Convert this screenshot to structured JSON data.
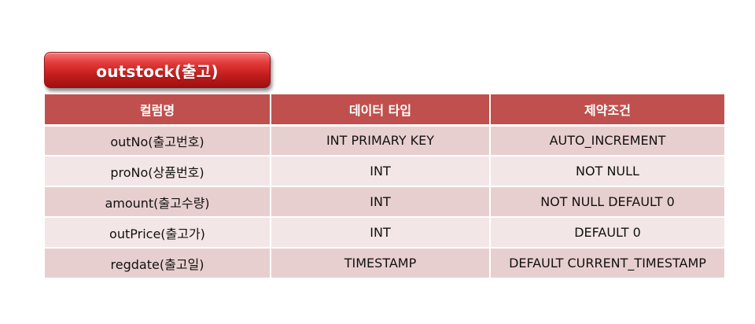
{
  "title": "outstock(출고)",
  "table": {
    "headers": [
      "컬럼명",
      "데이터 타입",
      "제약조건"
    ],
    "rows": [
      [
        "outNo(출고번호)",
        "INT PRIMARY KEY",
        "AUTO_INCREMENT"
      ],
      [
        "proNo(상품번호)",
        "INT",
        "NOT NULL"
      ],
      [
        "amount(출고수량)",
        "INT",
        "NOT NULL DEFAULT 0"
      ],
      [
        "outPrice(출고가)",
        "INT",
        "DEFAULT 0"
      ],
      [
        "regdate(출고일)",
        "TIMESTAMP",
        "DEFAULT CURRENT_TIMESTAMP"
      ]
    ]
  },
  "colors": {
    "header_bg": "#c0504d",
    "row_odd_bg": "#e8cfcf",
    "row_even_bg": "#f3e6e6",
    "title_badge": "#d32f2f"
  }
}
